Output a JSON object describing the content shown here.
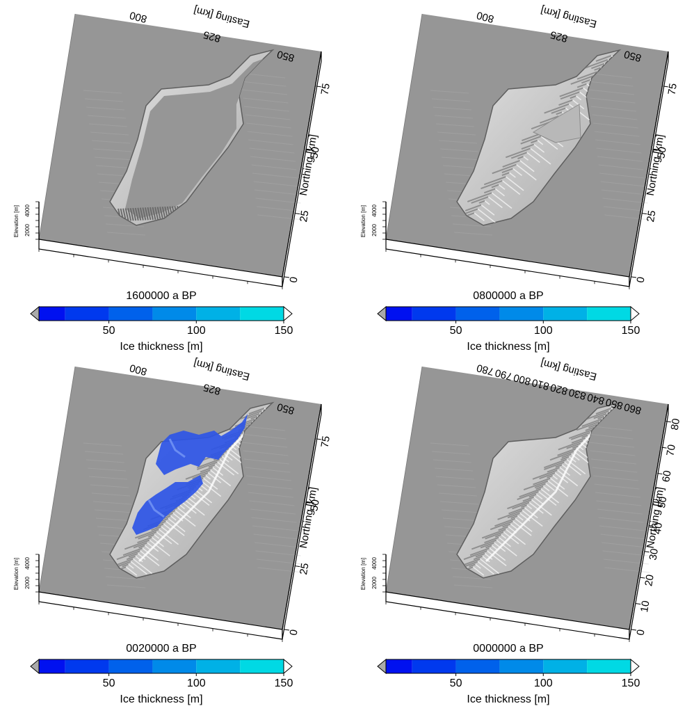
{
  "colors": {
    "background": "#969696",
    "terrain_light": "#e2e2e2",
    "terrain_shadow": "#7c7c7c",
    "ice": "#2e55e6",
    "ice_light": "#6a8cf2"
  },
  "colorbar": {
    "label": "Ice thickness [m]",
    "tick_labels": [
      "50",
      "100",
      "150"
    ],
    "tick_values": [
      50,
      100,
      150
    ],
    "range": [
      10,
      150
    ],
    "bins": [
      {
        "from": 10,
        "to": 25,
        "color": "#0011f0"
      },
      {
        "from": 25,
        "to": 50,
        "color": "#0039ee"
      },
      {
        "from": 50,
        "to": 75,
        "color": "#0061eb"
      },
      {
        "from": 75,
        "to": 100,
        "color": "#008ae9"
      },
      {
        "from": 100,
        "to": 125,
        "color": "#00b1e6"
      },
      {
        "from": 125,
        "to": 150,
        "color": "#00d9e4"
      }
    ],
    "low_triangle_color": "#aaaaaa",
    "high_triangle_color": "#ffffff"
  },
  "elevation_axis": {
    "label": "Elevation [m]",
    "tick_labels": [
      "2000",
      "4000"
    ]
  },
  "panels": [
    {
      "id": "p1",
      "time_label": "1600000 a BP",
      "easting_label": "Easting [km]",
      "easting_ticks": [
        "800",
        "825",
        "850"
      ],
      "northing_label": "Northing [km]",
      "northing_ticks": [
        "0",
        "25",
        "50",
        "75"
      ],
      "terrain": "flat-plateau",
      "ice": false
    },
    {
      "id": "p2",
      "time_label": "0800000 a BP",
      "easting_label": "Easting [km]",
      "easting_ticks": [
        "800",
        "825",
        "850"
      ],
      "northing_label": "Northing [km]",
      "northing_ticks": [
        "0",
        "25",
        "50",
        "75"
      ],
      "terrain": "incised",
      "ice": false
    },
    {
      "id": "p3",
      "time_label": "0020000 a BP",
      "easting_label": "Easting [km]",
      "easting_ticks": [
        "800",
        "825",
        "850"
      ],
      "northing_label": "Northing [km]",
      "northing_ticks": [
        "0",
        "25",
        "50",
        "75"
      ],
      "terrain": "ridged",
      "ice": true
    },
    {
      "id": "p4",
      "time_label": "0000000 a BP",
      "easting_label": "Easting [km]",
      "easting_ticks": [
        "780",
        "790",
        "800",
        "810",
        "820",
        "830",
        "840",
        "850",
        "860"
      ],
      "northing_label": "Northing [km]",
      "northing_ticks": [
        "0",
        "10",
        "20",
        "30",
        "40",
        "50",
        "60",
        "70",
        "80"
      ],
      "terrain": "ridged",
      "ice": false
    }
  ]
}
